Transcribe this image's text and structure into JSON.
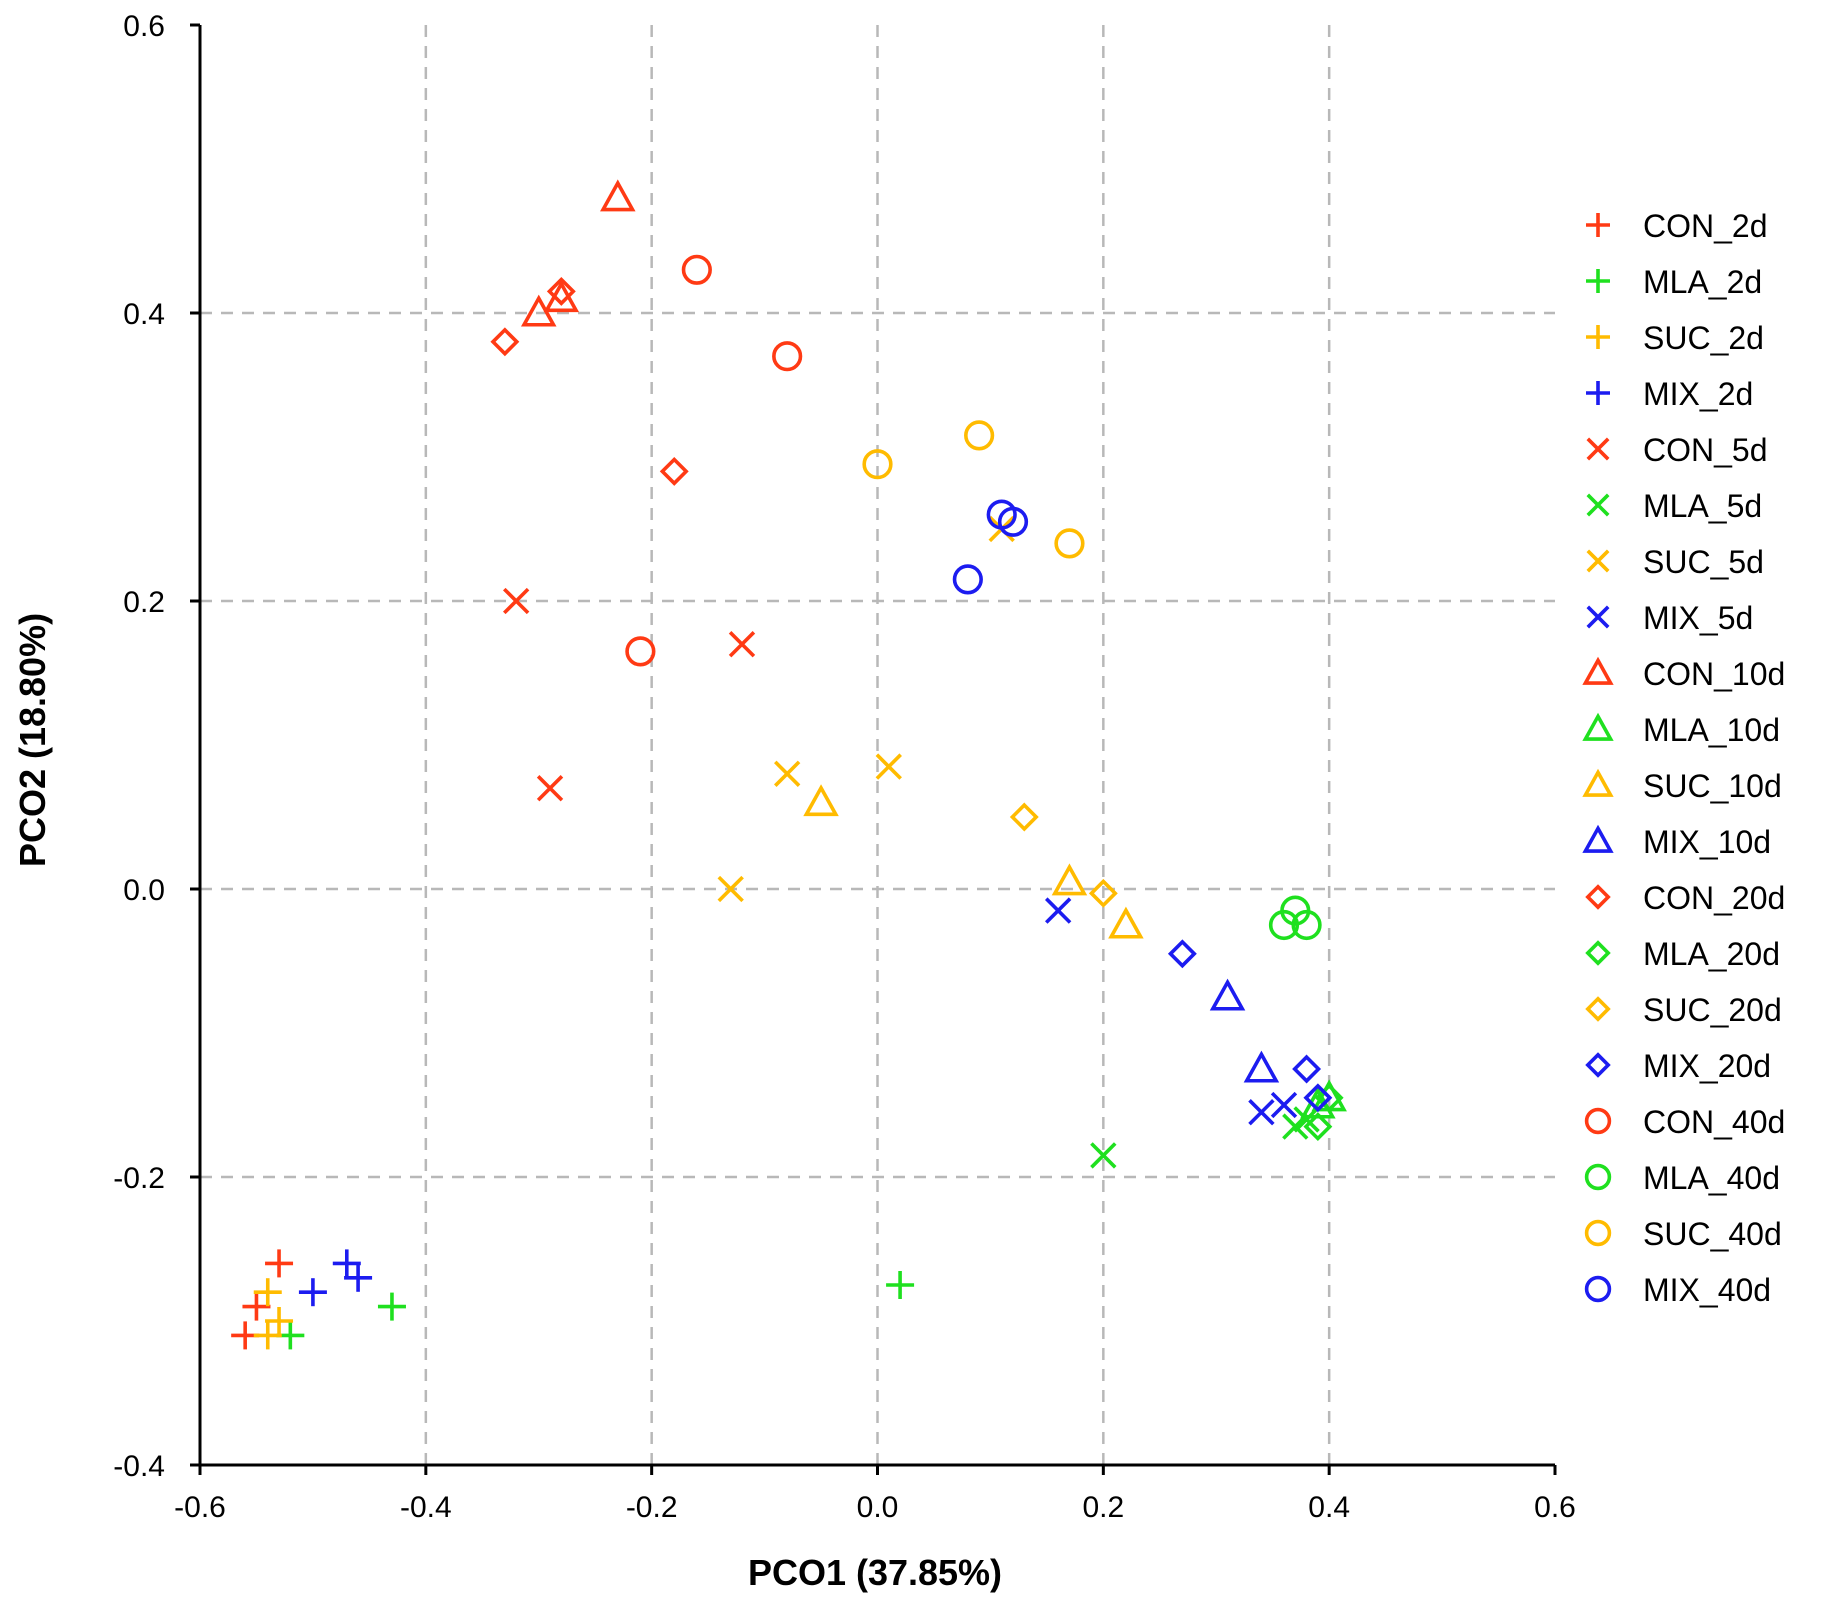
{
  "chart_data": {
    "type": "scatter",
    "title": "",
    "xlabel": "PCO1 (37.85%)",
    "ylabel": "PCO2 (18.80%)",
    "xlim": [
      -0.6,
      0.6
    ],
    "ylim": [
      -0.4,
      0.6
    ],
    "xticks": [
      -0.6,
      -0.4,
      -0.2,
      0.0,
      0.2,
      0.4,
      0.6
    ],
    "yticks": [
      -0.4,
      -0.2,
      0.0,
      0.2,
      0.4,
      0.6
    ],
    "xtick_labels": [
      "-0.6",
      "-0.4",
      "-0.2",
      "0.0",
      "0.2",
      "0.4",
      "0.6"
    ],
    "ytick_labels": [
      "-0.4",
      "-0.2",
      "0.0",
      "0.2",
      "0.4",
      "0.6"
    ],
    "grid": true,
    "legend_position": "right",
    "colors": {
      "CON": "#ff3a14",
      "MLA": "#1fe01f",
      "SUC": "#ffbb00",
      "MIX": "#1c1cf0"
    },
    "series": [
      {
        "name": "CON_2d",
        "group": "CON",
        "marker": "plus",
        "points": [
          [
            -0.53,
            -0.26
          ],
          [
            -0.55,
            -0.29
          ],
          [
            -0.56,
            -0.31
          ]
        ]
      },
      {
        "name": "MLA_2d",
        "group": "MLA",
        "marker": "plus",
        "points": [
          [
            -0.43,
            -0.29
          ],
          [
            -0.52,
            -0.31
          ],
          [
            0.02,
            -0.275
          ]
        ]
      },
      {
        "name": "SUC_2d",
        "group": "SUC",
        "marker": "plus",
        "points": [
          [
            -0.54,
            -0.28
          ],
          [
            -0.53,
            -0.3
          ],
          [
            -0.54,
            -0.31
          ]
        ]
      },
      {
        "name": "MIX_2d",
        "group": "MIX",
        "marker": "plus",
        "points": [
          [
            -0.47,
            -0.26
          ],
          [
            -0.46,
            -0.27
          ],
          [
            -0.5,
            -0.28
          ]
        ]
      },
      {
        "name": "CON_5d",
        "group": "CON",
        "marker": "x",
        "points": [
          [
            -0.32,
            0.2
          ],
          [
            -0.12,
            0.17
          ],
          [
            -0.29,
            0.07
          ]
        ]
      },
      {
        "name": "MLA_5d",
        "group": "MLA",
        "marker": "x",
        "points": [
          [
            0.2,
            -0.185
          ],
          [
            0.37,
            -0.165
          ],
          [
            0.38,
            -0.16
          ]
        ]
      },
      {
        "name": "SUC_5d",
        "group": "SUC",
        "marker": "x",
        "points": [
          [
            -0.08,
            0.08
          ],
          [
            0.01,
            0.085
          ],
          [
            -0.13,
            0.0
          ],
          [
            0.11,
            0.25
          ]
        ]
      },
      {
        "name": "MIX_5d",
        "group": "MIX",
        "marker": "x",
        "points": [
          [
            0.16,
            -0.015
          ],
          [
            0.34,
            -0.155
          ],
          [
            0.36,
            -0.15
          ]
        ]
      },
      {
        "name": "CON_10d",
        "group": "CON",
        "marker": "triangle",
        "points": [
          [
            -0.23,
            0.48
          ],
          [
            -0.3,
            0.4
          ],
          [
            -0.28,
            0.41
          ]
        ]
      },
      {
        "name": "MLA_10d",
        "group": "MLA",
        "marker": "triangle",
        "points": [
          [
            0.39,
            -0.15
          ],
          [
            0.4,
            -0.145
          ]
        ]
      },
      {
        "name": "SUC_10d",
        "group": "SUC",
        "marker": "triangle",
        "points": [
          [
            -0.05,
            0.06
          ],
          [
            0.17,
            0.005
          ],
          [
            0.22,
            -0.025
          ]
        ]
      },
      {
        "name": "MIX_10d",
        "group": "MIX",
        "marker": "triangle",
        "points": [
          [
            0.31,
            -0.075
          ],
          [
            0.34,
            -0.125
          ]
        ]
      },
      {
        "name": "CON_20d",
        "group": "CON",
        "marker": "diamond",
        "points": [
          [
            -0.28,
            0.415
          ],
          [
            -0.33,
            0.38
          ],
          [
            -0.18,
            0.29
          ]
        ]
      },
      {
        "name": "MLA_20d",
        "group": "MLA",
        "marker": "diamond",
        "points": [
          [
            0.39,
            -0.165
          ],
          [
            0.4,
            -0.145
          ]
        ]
      },
      {
        "name": "SUC_20d",
        "group": "SUC",
        "marker": "diamond",
        "points": [
          [
            0.13,
            0.05
          ],
          [
            0.2,
            -0.003
          ]
        ]
      },
      {
        "name": "MIX_20d",
        "group": "MIX",
        "marker": "diamond",
        "points": [
          [
            0.27,
            -0.045
          ],
          [
            0.38,
            -0.125
          ],
          [
            0.39,
            -0.145
          ]
        ]
      },
      {
        "name": "CON_40d",
        "group": "CON",
        "marker": "circle",
        "points": [
          [
            -0.16,
            0.43
          ],
          [
            -0.08,
            0.37
          ],
          [
            -0.21,
            0.165
          ]
        ]
      },
      {
        "name": "MLA_40d",
        "group": "MLA",
        "marker": "circle",
        "points": [
          [
            0.37,
            -0.015
          ],
          [
            0.36,
            -0.025
          ],
          [
            0.38,
            -0.025
          ]
        ]
      },
      {
        "name": "SUC_40d",
        "group": "SUC",
        "marker": "circle",
        "points": [
          [
            0.09,
            0.315
          ],
          [
            0.0,
            0.295
          ],
          [
            0.17,
            0.24
          ]
        ]
      },
      {
        "name": "MIX_40d",
        "group": "MIX",
        "marker": "circle",
        "points": [
          [
            0.11,
            0.26
          ],
          [
            0.12,
            0.255
          ],
          [
            0.08,
            0.215
          ]
        ]
      }
    ]
  }
}
